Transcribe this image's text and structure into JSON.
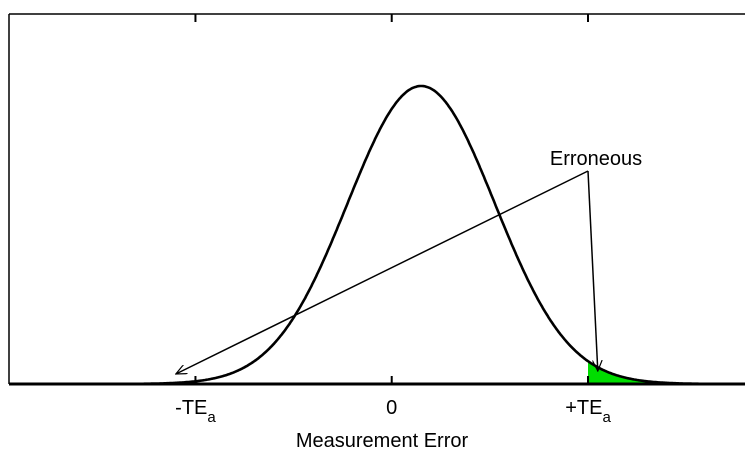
{
  "chart_data": {
    "type": "area",
    "xlabel": "Measurement Error",
    "ticks": [
      {
        "value": -2.0,
        "label": "-TE",
        "sub": "a"
      },
      {
        "value": 0.0,
        "label": "0",
        "sub": ""
      },
      {
        "value": 2.0,
        "label": "+TE",
        "sub": "a"
      }
    ],
    "xlim": [
      -3.9,
      3.6
    ],
    "distribution": {
      "mean": 0.3,
      "sd": 0.75
    },
    "erroneous_region": {
      "from": 2.0,
      "color": "#00dd00"
    },
    "annotation": {
      "text": "Erroneous",
      "targets": [
        -2.2,
        2.1
      ]
    },
    "grid": false,
    "legend": "none"
  }
}
